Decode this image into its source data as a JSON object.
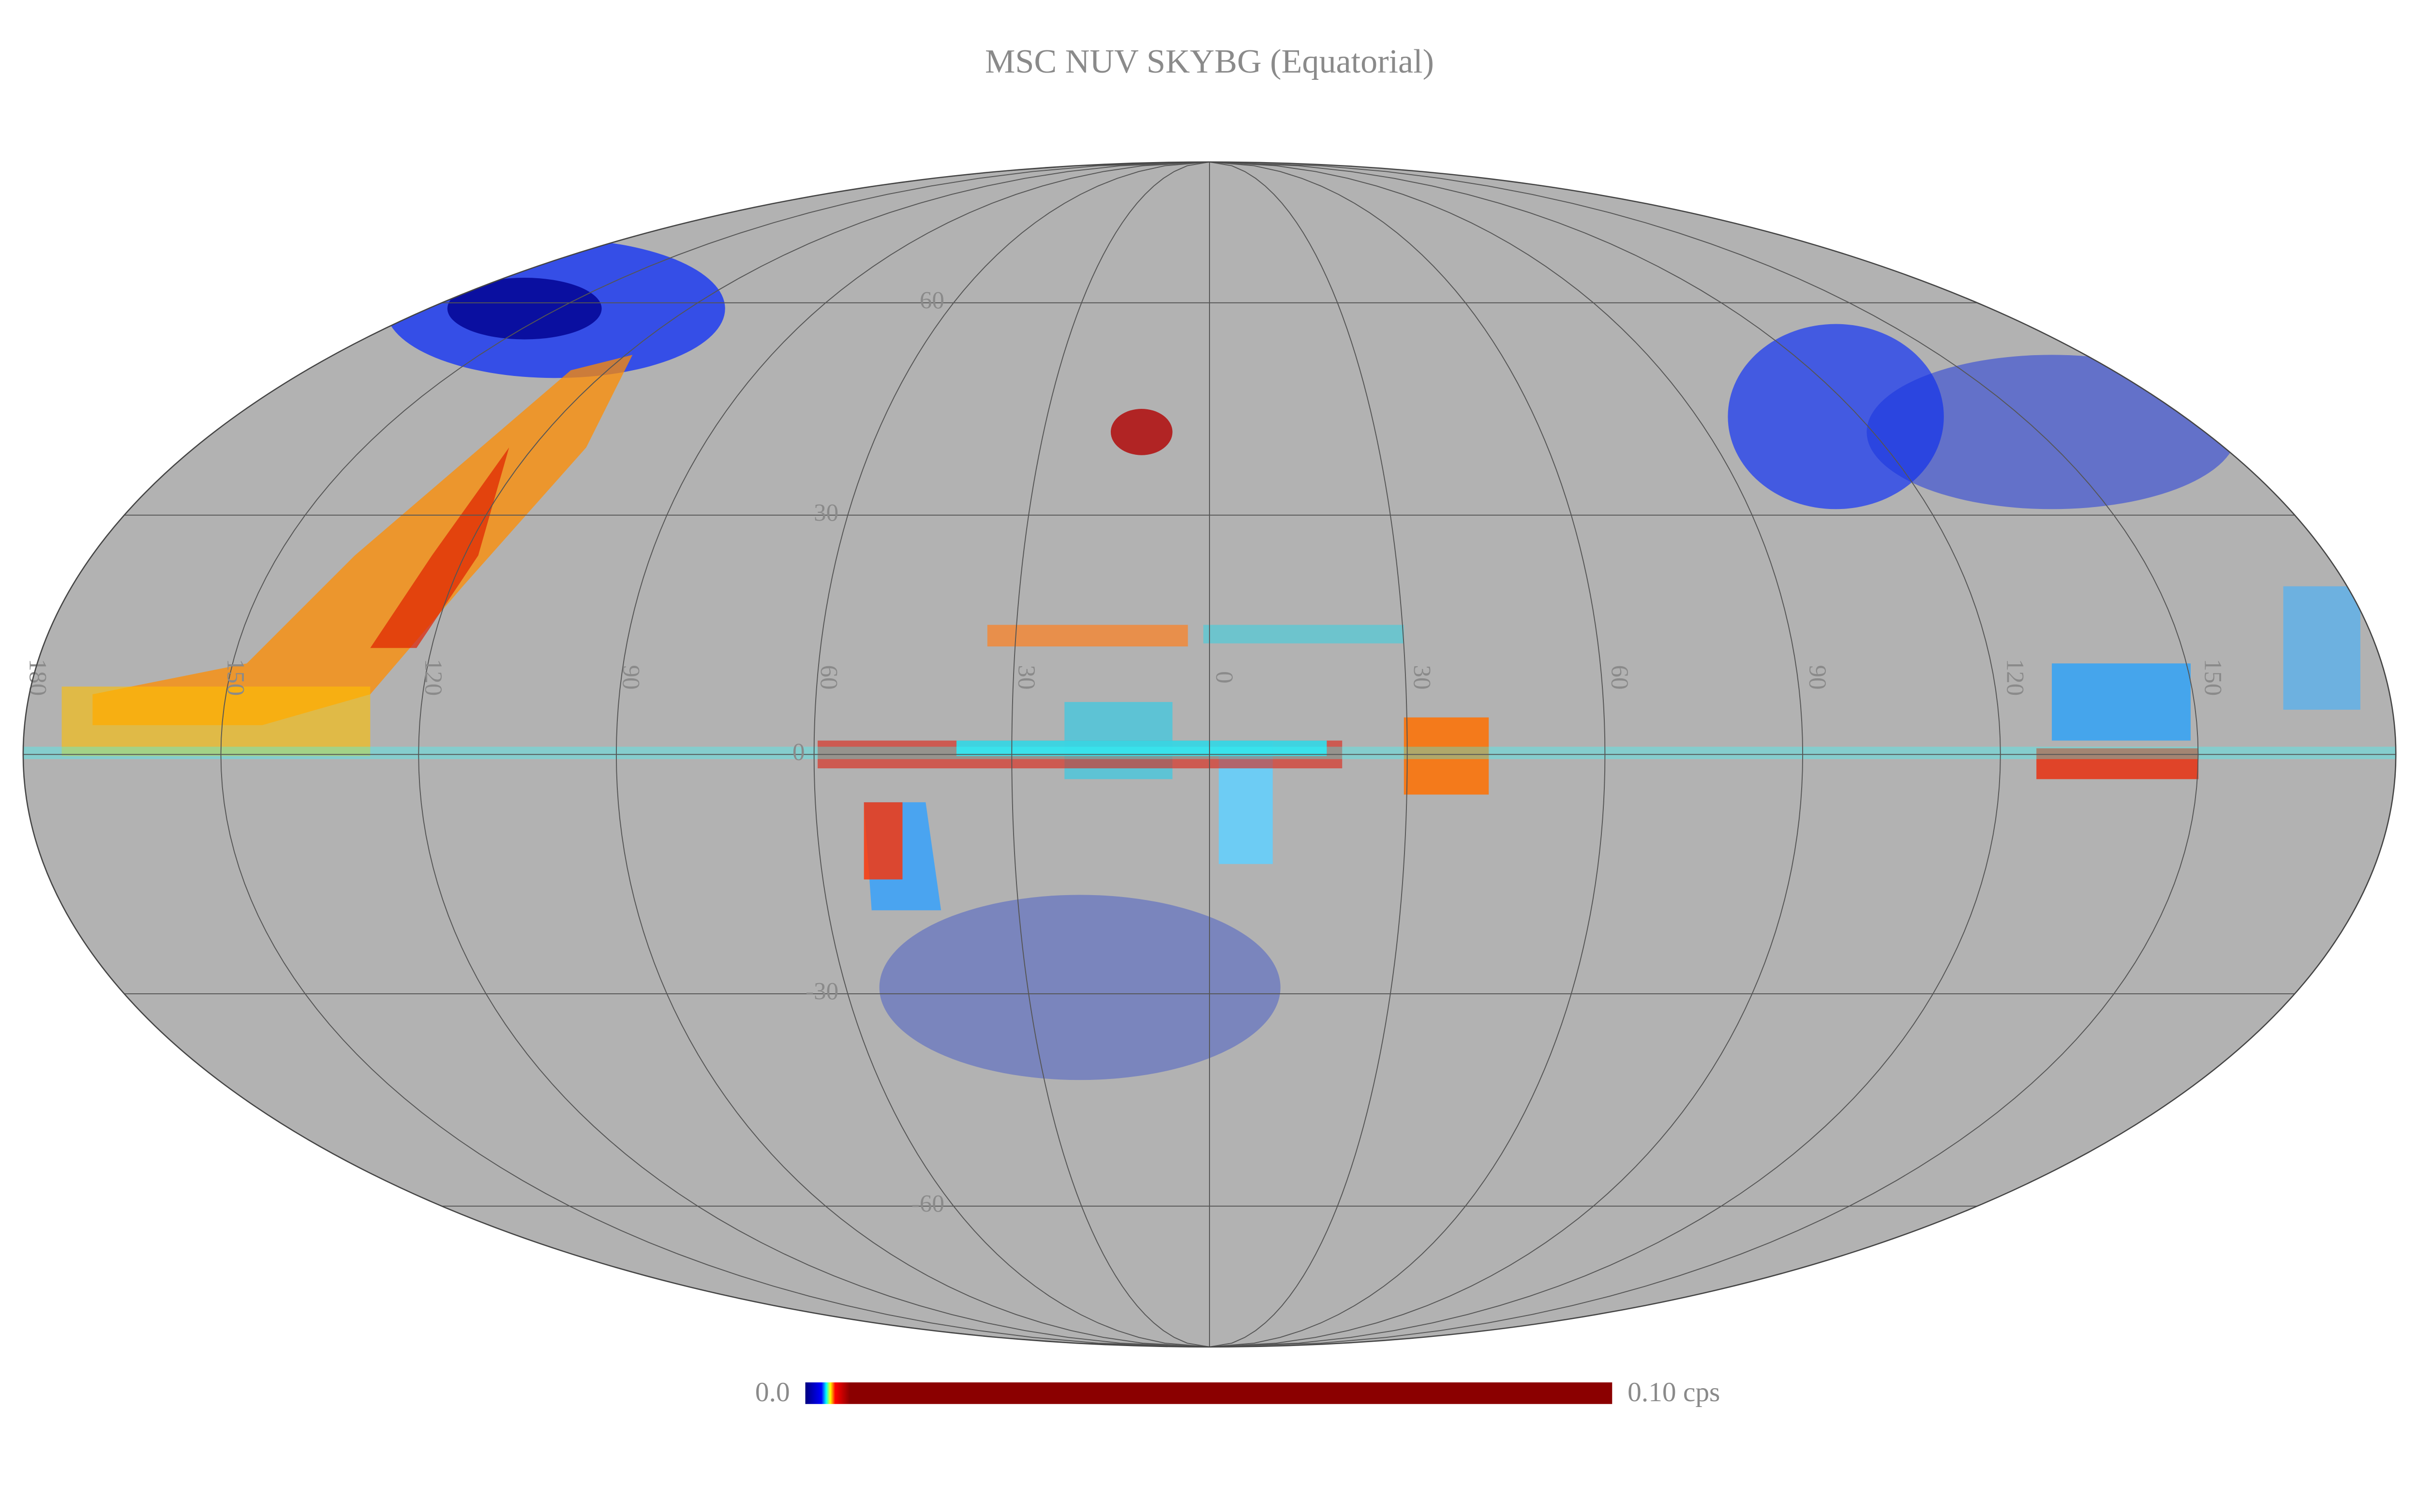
{
  "title": "MSC NUV SKYBG (Equatorial)",
  "colorbar": {
    "min_label": "0.0",
    "max_label": "0.10 cps"
  },
  "graticule": {
    "longitudes": [
      {
        "value": 180,
        "label": "180"
      },
      {
        "value": 150,
        "label": "150"
      },
      {
        "value": 120,
        "label": "120"
      },
      {
        "value": 90,
        "label": "90"
      },
      {
        "value": 60,
        "label": "60"
      },
      {
        "value": 30,
        "label": "30"
      },
      0,
      {
        "value": -30,
        "label": "30"
      },
      {
        "value": -60,
        "label": "60"
      },
      {
        "value": -90,
        "label": "90"
      },
      {
        "value": -120,
        "label": "120"
      },
      {
        "value": -150,
        "label": "150"
      }
    ],
    "latitudes": [
      60,
      30,
      0,
      -30,
      -60
    ]
  }
}
